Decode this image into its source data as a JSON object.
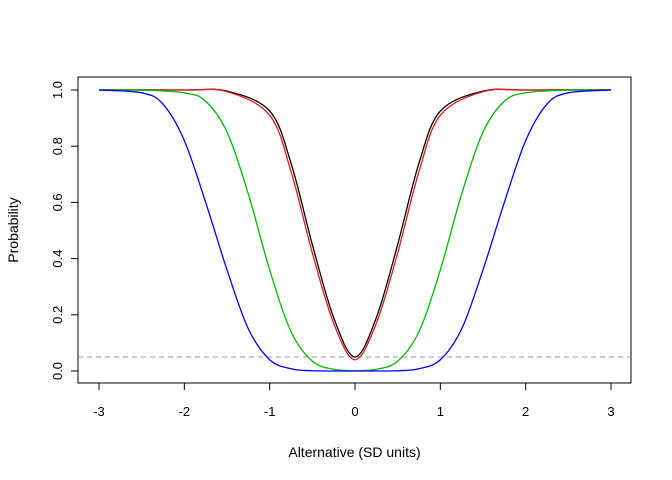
{
  "chart_data": {
    "type": "line",
    "title": "",
    "xlabel": "Alternative (SD units)",
    "ylabel": "Probability",
    "xlim": [
      -3,
      3
    ],
    "ylim": [
      0,
      1
    ],
    "x_ticks": [
      "-3",
      "-2",
      "-1",
      "0",
      "1",
      "2",
      "3"
    ],
    "y_ticks": [
      "0.0",
      "0.2",
      "0.4",
      "0.6",
      "0.8",
      "1.0"
    ],
    "grid": false,
    "legend": "none",
    "reference_line": {
      "y": 0.05,
      "style": "dashed",
      "color": "#999999"
    },
    "series": [
      {
        "color": "#000000",
        "x": [
          -3,
          -2,
          -1.5,
          -1,
          -0.75,
          -0.5,
          -0.25,
          0,
          0.25,
          0.5,
          0.75,
          1,
          1.5,
          2,
          3
        ],
        "y": [
          1.0,
          1.0,
          0.996,
          0.925,
          0.74,
          0.45,
          0.19,
          0.05,
          0.19,
          0.45,
          0.74,
          0.925,
          0.996,
          1.0,
          1.0
        ]
      },
      {
        "color": "#e41a1c",
        "x": [
          -3,
          -2,
          -1.5,
          -1,
          -0.75,
          -0.5,
          -0.25,
          0,
          0.25,
          0.5,
          0.75,
          1,
          1.5,
          2,
          3
        ],
        "y": [
          1.0,
          1.0,
          0.994,
          0.91,
          0.71,
          0.42,
          0.17,
          0.04,
          0.17,
          0.42,
          0.71,
          0.91,
          0.994,
          1.0,
          1.0
        ]
      },
      {
        "color": "#00bb00",
        "x": [
          -3,
          -2.5,
          -2,
          -1.75,
          -1.5,
          -1.25,
          -1,
          -0.75,
          -0.5,
          -0.25,
          0,
          0.25,
          0.5,
          0.75,
          1,
          1.25,
          1.5,
          1.75,
          2,
          2.5,
          3
        ],
        "y": [
          1.0,
          1.0,
          0.99,
          0.96,
          0.85,
          0.63,
          0.36,
          0.14,
          0.035,
          0.006,
          0.001,
          0.006,
          0.035,
          0.14,
          0.36,
          0.63,
          0.85,
          0.96,
          0.99,
          1.0,
          1.0
        ]
      },
      {
        "color": "#0000ff",
        "x": [
          -3,
          -2.5,
          -2.25,
          -2,
          -1.75,
          -1.5,
          -1.25,
          -1,
          -0.75,
          -0.5,
          0,
          0.5,
          0.75,
          1,
          1.25,
          1.5,
          1.75,
          2,
          2.25,
          2.5,
          3
        ],
        "y": [
          1.0,
          0.99,
          0.95,
          0.82,
          0.6,
          0.36,
          0.15,
          0.04,
          0.008,
          0.001,
          0.0,
          0.001,
          0.008,
          0.04,
          0.15,
          0.36,
          0.6,
          0.82,
          0.95,
          0.99,
          1.0
        ]
      }
    ]
  }
}
